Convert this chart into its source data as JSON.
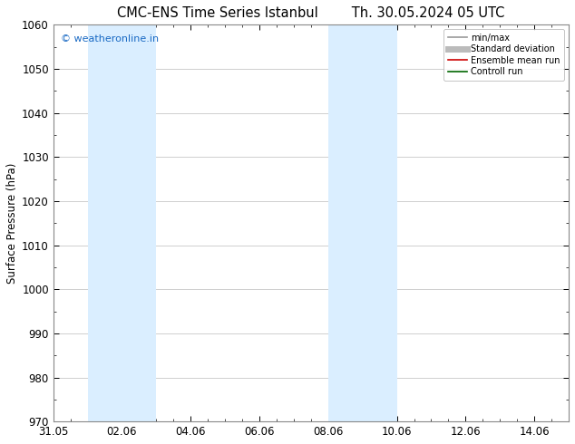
{
  "title_left": "CMC-ENS Time Series Istanbul",
  "title_right": "Th. 30.05.2024 05 UTC",
  "ylabel": "Surface Pressure (hPa)",
  "ylim": [
    970,
    1060
  ],
  "yticks": [
    970,
    980,
    990,
    1000,
    1010,
    1020,
    1030,
    1040,
    1050,
    1060
  ],
  "xlim": [
    0,
    15
  ],
  "xtick_labels": [
    "31.05",
    "02.06",
    "04.06",
    "06.06",
    "08.06",
    "10.06",
    "12.06",
    "14.06"
  ],
  "xtick_positions": [
    0,
    2,
    4,
    6,
    8,
    10,
    12,
    14
  ],
  "shaded_regions": [
    {
      "x_start": 1,
      "x_end": 3
    },
    {
      "x_start": 8,
      "x_end": 10
    }
  ],
  "shaded_color": "#daeeff",
  "background_color": "#ffffff",
  "plot_bg_color": "#ffffff",
  "grid_color": "#c8c8c8",
  "spine_color": "#888888",
  "watermark_text": "© weatheronline.in",
  "watermark_color": "#1a6ac4",
  "legend_items": [
    {
      "label": "min/max",
      "color": "#999999",
      "lw": 1.2,
      "style": "solid"
    },
    {
      "label": "Standard deviation",
      "color": "#bbbbbb",
      "lw": 5,
      "style": "solid"
    },
    {
      "label": "Ensemble mean run",
      "color": "#cc0000",
      "lw": 1.2,
      "style": "solid"
    },
    {
      "label": "Controll run",
      "color": "#006600",
      "lw": 1.2,
      "style": "solid"
    }
  ],
  "font_color": "#000000",
  "tick_font_size": 8.5,
  "label_font_size": 8.5,
  "title_font_size": 10.5
}
